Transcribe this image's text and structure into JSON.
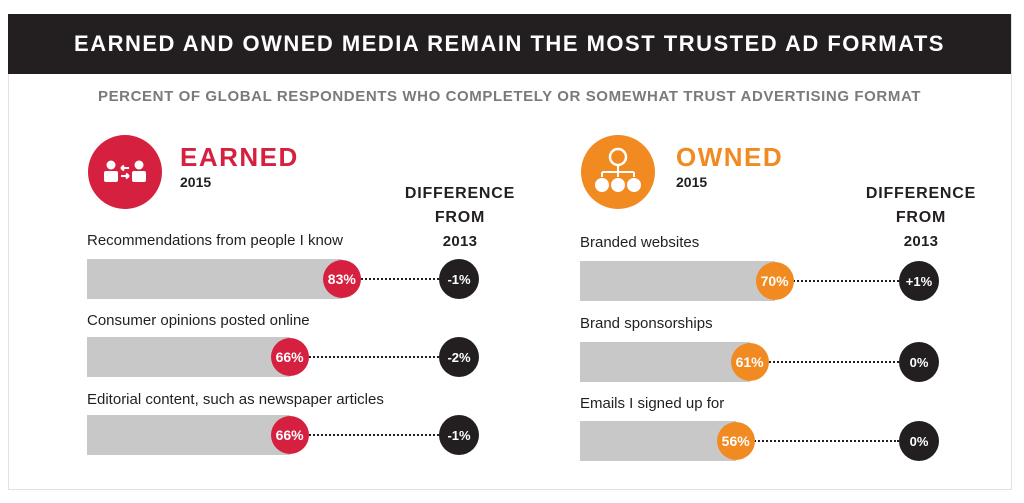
{
  "title": "EARNED AND OWNED MEDIA REMAIN THE MOST TRUSTED AD FORMATS",
  "subtitle": "PERCENT OF GLOBAL RESPONDENTS WHO COMPLETELY OR SOMEWHAT TRUST ADVERTISING FORMAT",
  "colors": {
    "earned": "#d6203f",
    "owned": "#f18a21",
    "dark": "#231f20",
    "track": "#c8c8c8"
  },
  "chart_data": [
    {
      "type": "bar",
      "title": "EARNED",
      "subtitle": "2015",
      "diff_header": [
        "DIFFERENCE",
        "FROM",
        "2013"
      ],
      "categories": [
        "Recommendations from people I know",
        "Consumer opinions posted online",
        "Editorial content, such as newspaper articles"
      ],
      "values": [
        83,
        66,
        66
      ],
      "value_labels": [
        "83%",
        "66%",
        "66%"
      ],
      "differences": [
        "-1%",
        "-2%",
        "-1%"
      ],
      "icon": "people-exchange-icon",
      "ylim": [
        0,
        100
      ]
    },
    {
      "type": "bar",
      "title": "OWNED",
      "subtitle": "2015",
      "diff_header": [
        "DIFFERENCE",
        "FROM",
        "2013"
      ],
      "categories": [
        "Branded websites",
        "Brand sponsorships",
        "Emails I signed up for"
      ],
      "values": [
        70,
        61,
        56
      ],
      "value_labels": [
        "70%",
        "61%",
        "56%"
      ],
      "differences": [
        "+1%",
        "0%",
        "0%"
      ],
      "icon": "org-hierarchy-icon",
      "ylim": [
        0,
        100
      ]
    }
  ]
}
